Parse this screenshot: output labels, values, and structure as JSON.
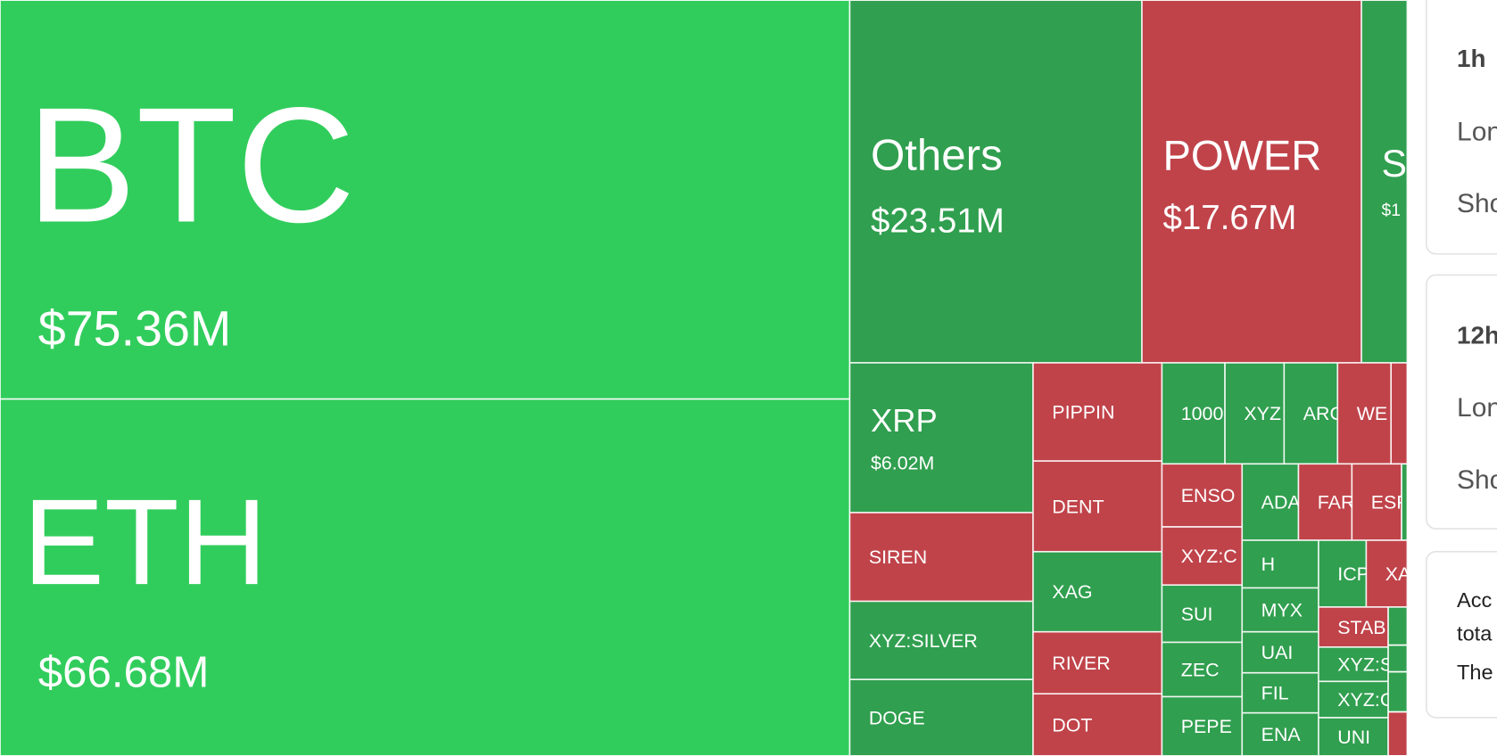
{
  "treemap": {
    "tiles": [
      {
        "label": "BTC",
        "value": "$75.36M"
      },
      {
        "label": "ETH",
        "value": "$66.68M"
      },
      {
        "label": "Others",
        "value": "$23.51M"
      },
      {
        "label": "POWER",
        "value": "$17.67M"
      },
      {
        "label": "S",
        "value": "$1"
      },
      {
        "label": "XRP",
        "value": "$6.02M"
      },
      {
        "label": "SIREN"
      },
      {
        "label": "XYZ:SILVER"
      },
      {
        "label": "DOGE"
      },
      {
        "label": "PIPPIN"
      },
      {
        "label": "DENT"
      },
      {
        "label": "XAG"
      },
      {
        "label": "RIVER"
      },
      {
        "label": "DOT"
      },
      {
        "label": "1000"
      },
      {
        "label": "XYZ"
      },
      {
        "label": "ARC"
      },
      {
        "label": "WE"
      },
      {
        "label": "ENSO"
      },
      {
        "label": "XYZ:C"
      },
      {
        "label": "SUI"
      },
      {
        "label": "ZEC"
      },
      {
        "label": "PEPE"
      },
      {
        "label": "ADA"
      },
      {
        "label": "FAR"
      },
      {
        "label": "ESP"
      },
      {
        "label": "H"
      },
      {
        "label": "ICP"
      },
      {
        "label": "XA"
      },
      {
        "label": "MYX"
      },
      {
        "label": "UAI"
      },
      {
        "label": "FIL"
      },
      {
        "label": "ENA"
      },
      {
        "label": "STAB"
      },
      {
        "label": "XYZ:S"
      },
      {
        "label": "XYZ:C"
      },
      {
        "label": "UNI"
      }
    ]
  },
  "panel": {
    "cards": [
      {
        "title": "1h",
        "lines": [
          "Lon",
          "Sho"
        ]
      },
      {
        "title": "12h",
        "lines": [
          "Lon",
          "Sho"
        ]
      },
      {
        "lines": [
          "Acc",
          "tota",
          "The"
        ]
      }
    ]
  }
}
